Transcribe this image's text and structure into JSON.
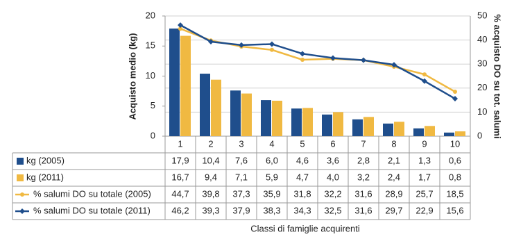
{
  "chart_data": {
    "type": "bar",
    "categories": [
      "1",
      "2",
      "3",
      "4",
      "5",
      "6",
      "7",
      "8",
      "9",
      "10"
    ],
    "y_label": "Acquisto medio (kg)",
    "y2_label": "% acquisto DO su tot. salumi",
    "x_label": "Classi di famiglie acquirenti",
    "ylim": [
      0,
      20
    ],
    "yticks": [
      0,
      5,
      10,
      15,
      20
    ],
    "y2lim": [
      0,
      50
    ],
    "y2ticks": [
      0,
      10,
      20,
      30,
      40,
      50
    ],
    "grid": true,
    "series": [
      {
        "name": "kg (2005)",
        "type": "bar",
        "color": "#1f4e8c",
        "values": [
          17.9,
          10.4,
          7.6,
          6.0,
          4.6,
          3.6,
          2.8,
          2.1,
          1.3,
          0.6
        ],
        "value_labels": [
          "17,9",
          "10,4",
          "7,6",
          "6,0",
          "4,6",
          "3,6",
          "2,8",
          "2,1",
          "1,3",
          "0,6"
        ]
      },
      {
        "name": "kg (2011)",
        "type": "bar",
        "color": "#f0b942",
        "values": [
          16.7,
          9.4,
          7.1,
          5.9,
          4.7,
          4.0,
          3.2,
          2.4,
          1.7,
          0.8
        ],
        "value_labels": [
          "16,7",
          "9,4",
          "7,1",
          "5,9",
          "4,7",
          "4,0",
          "3,2",
          "2,4",
          "1,7",
          "0,8"
        ]
      },
      {
        "name": "% salumi DO su totale (2005)",
        "type": "line",
        "axis": "y2",
        "color": "#f0b942",
        "values": [
          44.7,
          39.8,
          37.3,
          35.9,
          31.8,
          32.2,
          31.6,
          28.9,
          25.7,
          18.5
        ],
        "value_labels": [
          "44,7",
          "39,8",
          "37,3",
          "35,9",
          "31,8",
          "32,2",
          "31,6",
          "28,9",
          "25,7",
          "18,5"
        ]
      },
      {
        "name": "% salumi DO su totale (2011)",
        "type": "line",
        "axis": "y2",
        "color": "#1f4e8c",
        "values": [
          46.2,
          39.3,
          37.9,
          38.3,
          34.3,
          32.5,
          31.6,
          29.7,
          22.9,
          15.6
        ],
        "value_labels": [
          "46,2",
          "39,3",
          "37,9",
          "38,3",
          "34,3",
          "32,5",
          "31,6",
          "29,7",
          "22,9",
          "15,6"
        ]
      }
    ]
  }
}
